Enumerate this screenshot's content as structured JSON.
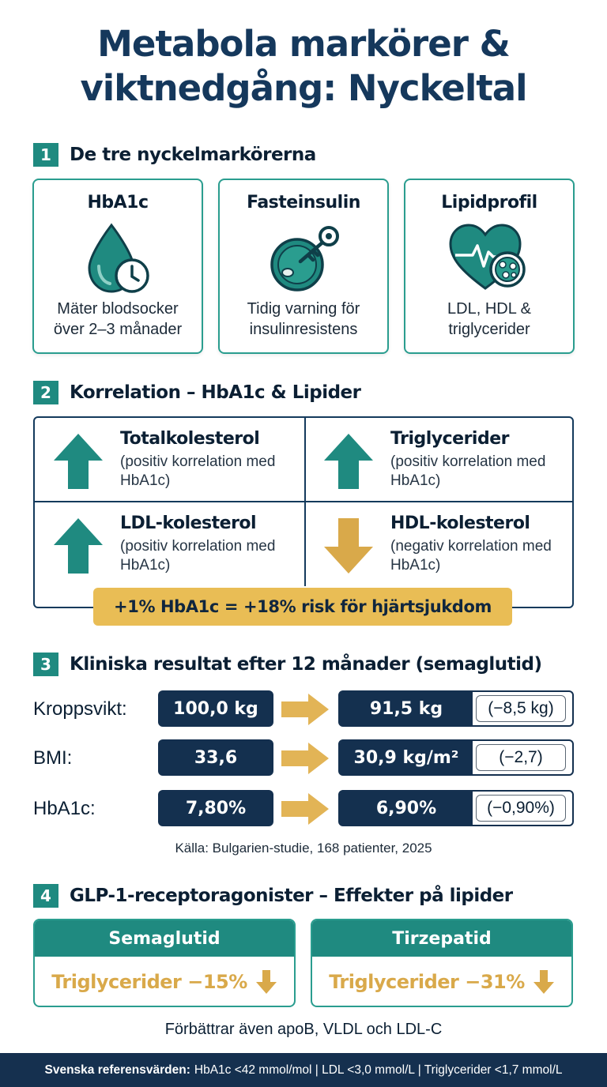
{
  "title": {
    "line1": "Metabola markörer &",
    "line2": "viktnedgång: Nyckeltal"
  },
  "section1": {
    "number": "1",
    "heading": "De tre nyckelmarkörerna",
    "cards": [
      {
        "title": "HbA1c",
        "icon": "blood-drop-clock-icon",
        "desc1": "Mäter blodsocker",
        "desc2": "över 2–3 månader"
      },
      {
        "title": "Fasteinsulin",
        "icon": "cell-key-icon",
        "desc1": "Tidig varning för",
        "desc2": "insulinresistens"
      },
      {
        "title": "Lipidprofil",
        "icon": "heart-lipid-icon",
        "desc1": "LDL, HDL &",
        "desc2": "triglycerider"
      }
    ]
  },
  "section2": {
    "number": "2",
    "heading": "Korrelation – HbA1c & Lipider",
    "items": [
      {
        "name": "Totalkolesterol",
        "note": "(positiv korrelation med HbA1c)",
        "direction": "up"
      },
      {
        "name": "Triglycerider",
        "note": "(positiv korrelation med HbA1c)",
        "direction": "up"
      },
      {
        "name": "LDL-kolesterol",
        "note": "(positiv korrelation med HbA1c)",
        "direction": "up"
      },
      {
        "name": "HDL-kolesterol",
        "note": "(negativ korrelation med HbA1c)",
        "direction": "down"
      }
    ],
    "risk": "+1% HbA1c = +18% risk för hjärtsjukdom"
  },
  "section3": {
    "number": "3",
    "heading": "Kliniska resultat efter 12 månader (semaglutid)",
    "rows": [
      {
        "label": "Kroppsvikt:",
        "before": "100,0 kg",
        "after": "91,5 kg",
        "delta": "(−8,5 kg)"
      },
      {
        "label": "BMI:",
        "before": "33,6",
        "after": "30,9 kg/m²",
        "delta": "(−2,7)"
      },
      {
        "label": "HbA1c:",
        "before": "7,80%",
        "after": "6,90%",
        "delta": "(−0,90%)"
      }
    ],
    "source": "Källa: Bulgarien-studie, 168 patienter, 2025"
  },
  "section4": {
    "number": "4",
    "heading": "GLP-1-receptoragonister – Effekter på lipider",
    "cards": [
      {
        "name": "Semaglutid",
        "effect": "Triglycerider −15%"
      },
      {
        "name": "Tirzepatid",
        "effect": "Triglycerider −31%"
      }
    ],
    "note": "Förbättrar även apoB, VLDL och LDL-C"
  },
  "footer": {
    "label": "Svenska referensvärden:",
    "text": "HbA1c <42 mmol/mol | LDL <3,0 mmol/L | Triglycerider <1,7 mmol/L"
  },
  "colors": {
    "teal": "#1f8a80",
    "navy": "#14304f",
    "gold": "#e9bd55",
    "arrow_gold": "#d9a94a"
  }
}
